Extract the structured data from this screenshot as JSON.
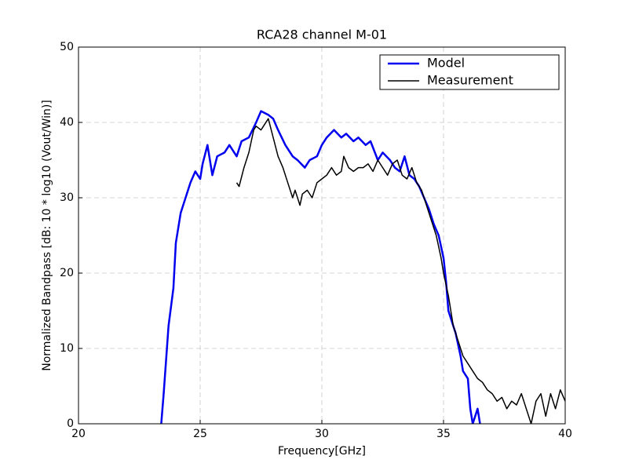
{
  "chart_data": {
    "type": "line",
    "title": "RCA28 channel M-01",
    "xlabel": "Frequency[GHz]",
    "ylabel": "Normalized Bandpass [dB: 10 * log10 (Vout/Win)]",
    "xlim": [
      20,
      40
    ],
    "ylim": [
      0,
      50
    ],
    "xticks": [
      20,
      25,
      30,
      35,
      40
    ],
    "yticks": [
      0,
      10,
      20,
      30,
      40,
      50
    ],
    "grid": true,
    "legend": "upper right",
    "series": [
      {
        "name": "Model",
        "color": "#0000ee",
        "x": [
          23.4,
          23.5,
          23.7,
          23.9,
          24.0,
          24.2,
          24.4,
          24.6,
          24.8,
          25.0,
          25.1,
          25.3,
          25.5,
          25.7,
          26.0,
          26.2,
          26.5,
          26.7,
          27.0,
          27.3,
          27.5,
          27.8,
          28.0,
          28.2,
          28.5,
          28.8,
          29.0,
          29.3,
          29.5,
          29.8,
          30.0,
          30.2,
          30.5,
          30.8,
          31.0,
          31.3,
          31.5,
          31.8,
          32.0,
          32.3,
          32.5,
          32.8,
          33.0,
          33.2,
          33.4,
          33.6,
          33.8,
          34.0,
          34.2,
          34.4,
          34.6,
          34.8,
          35.0,
          35.1,
          35.2,
          35.4,
          35.5,
          35.7,
          35.8,
          36.0,
          36.1,
          36.2,
          36.4,
          36.5
        ],
        "values": [
          0,
          4,
          13,
          18,
          24,
          28,
          30,
          32,
          33.5,
          32.5,
          34.5,
          37,
          33,
          35.5,
          36,
          37,
          35.5,
          37.5,
          38,
          40,
          41.5,
          41,
          40.5,
          39,
          37,
          35.5,
          35,
          34,
          35,
          35.5,
          37,
          38,
          39,
          38,
          38.5,
          37.5,
          38,
          37,
          37.5,
          35,
          36,
          35,
          34,
          33.5,
          35.5,
          33,
          32.5,
          31.5,
          30,
          28.5,
          26.5,
          25,
          22,
          19,
          15,
          13,
          12,
          9,
          7,
          6,
          2,
          0,
          2,
          0
        ]
      },
      {
        "name": "Measurement",
        "color": "#000000",
        "x": [
          26.5,
          26.6,
          26.8,
          27.0,
          27.2,
          27.3,
          27.5,
          27.6,
          27.8,
          28.0,
          28.2,
          28.4,
          28.6,
          28.8,
          28.9,
          29.1,
          29.2,
          29.4,
          29.6,
          29.8,
          30.0,
          30.2,
          30.4,
          30.6,
          30.8,
          30.9,
          31.1,
          31.3,
          31.5,
          31.7,
          31.9,
          32.1,
          32.3,
          32.5,
          32.7,
          32.9,
          33.1,
          33.3,
          33.5,
          33.7,
          33.9,
          34.1,
          34.3,
          34.5,
          34.7,
          34.9,
          35.0,
          35.2,
          35.4,
          35.6,
          35.8,
          36.0,
          36.2,
          36.4,
          36.6,
          36.8,
          37.0,
          37.2,
          37.4,
          37.6,
          37.8,
          38.0,
          38.2,
          38.4,
          38.6,
          38.8,
          39.0,
          39.2,
          39.4,
          39.6,
          39.8,
          40.0
        ],
        "values": [
          32,
          31.5,
          34,
          36,
          39,
          39.5,
          39,
          39.5,
          40.5,
          38,
          35.5,
          34,
          32,
          30,
          31,
          29,
          30.5,
          31,
          30,
          32,
          32.5,
          33,
          34,
          33,
          33.5,
          35.5,
          34,
          33.5,
          34,
          34,
          34.5,
          33.5,
          35,
          34,
          33,
          34.5,
          35,
          33,
          32.5,
          34,
          32,
          31,
          29,
          27,
          25,
          22,
          20,
          17,
          13,
          11,
          9,
          8,
          7,
          6,
          5.5,
          4.5,
          4,
          3,
          3.5,
          2,
          3,
          2.5,
          4,
          2,
          0,
          3,
          4,
          1,
          4,
          2,
          4.5,
          3
        ]
      }
    ]
  }
}
